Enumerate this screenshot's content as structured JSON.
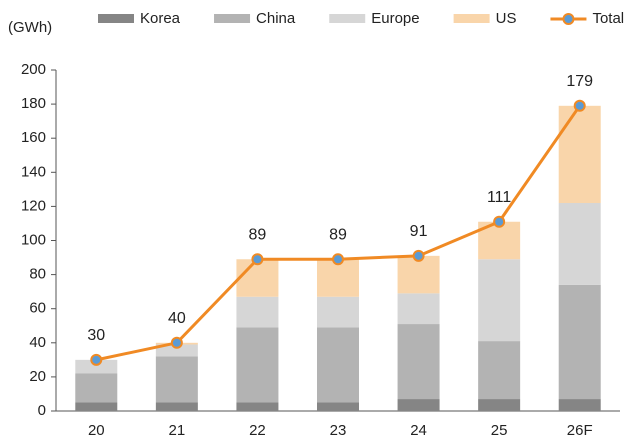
{
  "chart_data": {
    "type": "stacked_bar_line",
    "y_label": "(GWh)",
    "categories": [
      "20",
      "21",
      "22",
      "23",
      "24",
      "25",
      "26F"
    ],
    "series": [
      {
        "name": "Korea",
        "color": "#858585",
        "values": [
          5,
          5,
          5,
          5,
          7,
          7,
          7
        ]
      },
      {
        "name": "China",
        "color": "#b3b3b3",
        "values": [
          17,
          27,
          44,
          44,
          44,
          34,
          67
        ]
      },
      {
        "name": "Europe",
        "color": "#d6d6d6",
        "values": [
          8,
          7,
          18,
          18,
          18,
          48,
          48
        ]
      },
      {
        "name": "US",
        "color": "#f9d5aa",
        "values": [
          0,
          1,
          22,
          22,
          22,
          22,
          57
        ]
      }
    ],
    "line": {
      "name": "Total",
      "color": "#f08a24",
      "marker_color": "#5b9bd5",
      "values": [
        30,
        40,
        89,
        89,
        91,
        111,
        179
      ]
    },
    "ylim": [
      0,
      200
    ],
    "yticks": [
      0,
      20,
      40,
      60,
      80,
      100,
      120,
      140,
      160,
      180,
      200
    ]
  }
}
